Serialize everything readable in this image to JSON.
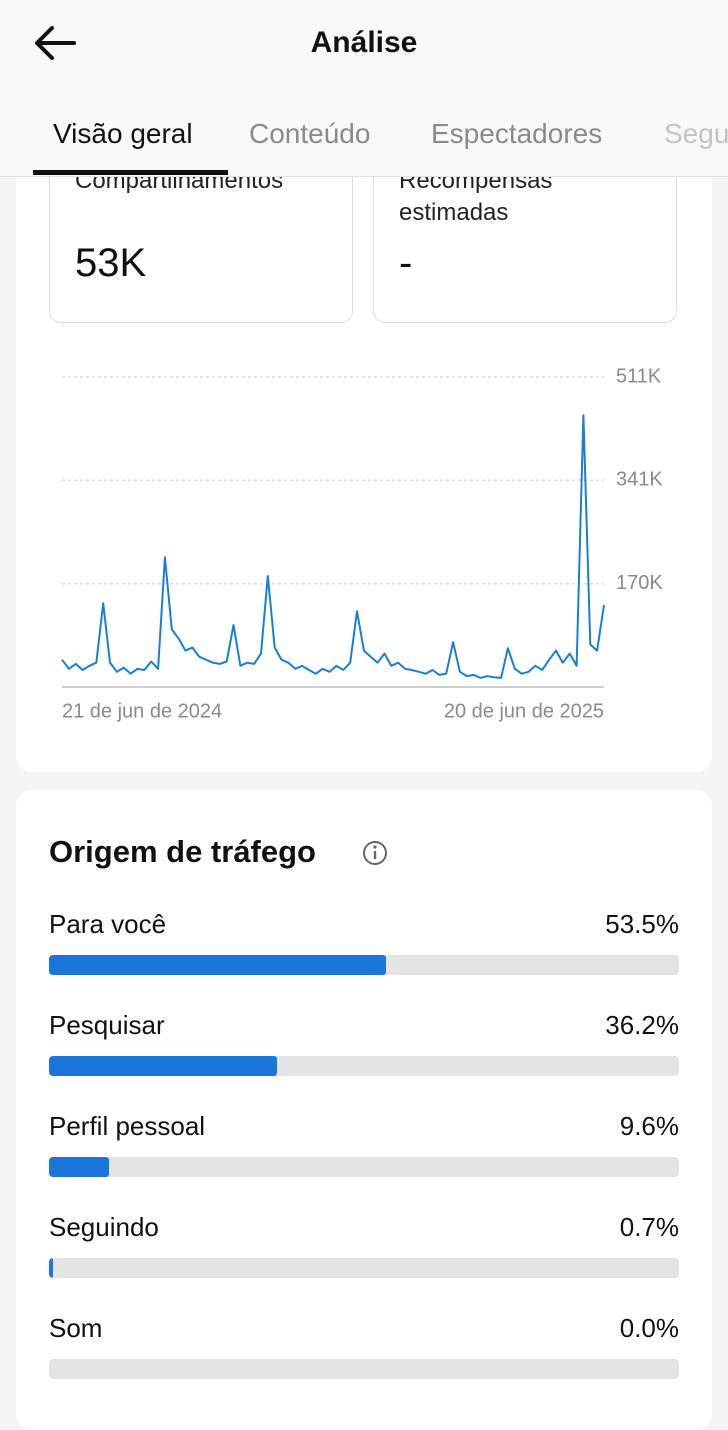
{
  "header": {
    "title": "Análise",
    "tabs": [
      "Visão geral",
      "Conteúdo",
      "Espectadores",
      "Segu"
    ]
  },
  "cards": [
    {
      "label": "Compartilhamentos",
      "value": "53K"
    },
    {
      "label": "Recompensas estimadas",
      "value": "-"
    }
  ],
  "chart_data": {
    "type": "line",
    "categories": [
      "21 de jun de 2024",
      null,
      null,
      null,
      null,
      null,
      null,
      null,
      null,
      null,
      null,
      null,
      null,
      null,
      null,
      null,
      null,
      null,
      null,
      null,
      null,
      null,
      null,
      null,
      null,
      null,
      null,
      null,
      null,
      null,
      null,
      null,
      null,
      null,
      null,
      null,
      null,
      null,
      null,
      null,
      null,
      null,
      null,
      null,
      null,
      null,
      null,
      null,
      null,
      null,
      null,
      null,
      null,
      null,
      null,
      null,
      null,
      null,
      null,
      null,
      null,
      null,
      null,
      null,
      null,
      null,
      null,
      null,
      null,
      null,
      null,
      null,
      null,
      null,
      null,
      null,
      null,
      null,
      null,
      "20 de jun de 2025"
    ],
    "series": [
      {
        "color": "#1a7fd4",
        "values": [
          45000,
          30000,
          38000,
          28000,
          35000,
          40000,
          138000,
          40000,
          25000,
          32000,
          22000,
          30000,
          28000,
          42000,
          30000,
          214000,
          95000,
          80000,
          60000,
          65000,
          50000,
          45000,
          40000,
          38000,
          42000,
          102000,
          35000,
          40000,
          38000,
          55000,
          183000,
          65000,
          45000,
          40000,
          30000,
          35000,
          28000,
          22000,
          30000,
          25000,
          35000,
          28000,
          40000,
          125000,
          60000,
          50000,
          40000,
          55000,
          35000,
          40000,
          30000,
          28000,
          25000,
          22000,
          28000,
          20000,
          22000,
          74000,
          25000,
          18000,
          20000,
          15000,
          18000,
          16000,
          15000,
          64000,
          30000,
          22000,
          25000,
          35000,
          28000,
          45000,
          60000,
          40000,
          55000,
          35000,
          448000,
          70000,
          60000,
          135000
        ]
      }
    ],
    "ylim": [
      0,
      511000
    ],
    "yticks": [
      {
        "value": 170000,
        "label": "170K"
      },
      {
        "value": 341000,
        "label": "341K"
      },
      {
        "value": 511000,
        "label": "511K"
      }
    ],
    "grid": true
  },
  "traffic": {
    "title": "Origem de tráfego",
    "color": "#1a77d9",
    "xlim": [
      0,
      100
    ],
    "categories": [
      "Para você",
      "Pesquisar",
      "Perfil pessoal",
      "Seguindo",
      "Som"
    ],
    "values": [
      53.5,
      36.2,
      9.6,
      0.7,
      0.0
    ],
    "value_labels": [
      "53.5%",
      "36.2%",
      "9.6%",
      "0.7%",
      "0.0%"
    ]
  }
}
